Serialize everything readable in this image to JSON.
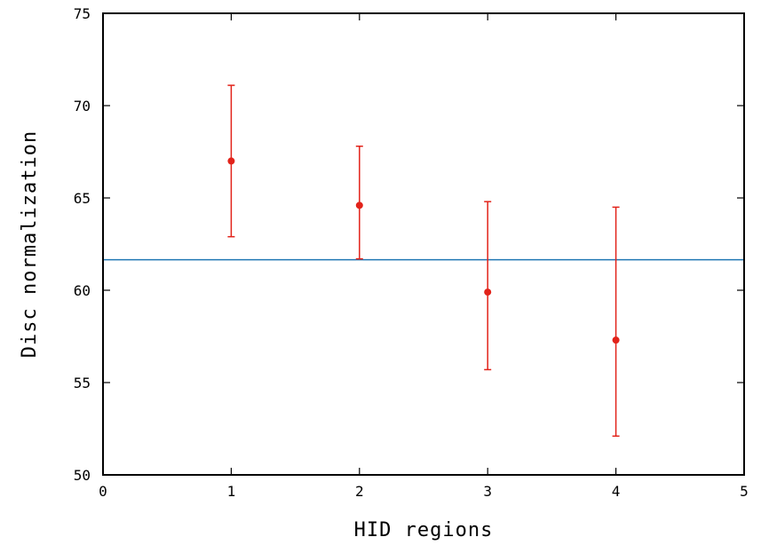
{
  "chart_data": {
    "type": "scatter",
    "title": "",
    "xlabel": "HID regions",
    "ylabel": "Disc normalization",
    "xlim": [
      0,
      5
    ],
    "ylim": [
      50,
      75
    ],
    "xticks": [
      0,
      1,
      2,
      3,
      4,
      5
    ],
    "yticks": [
      50,
      55,
      60,
      65,
      70,
      75
    ],
    "grid": false,
    "series": [
      {
        "color": "#e2231a",
        "x": [
          1,
          2,
          3,
          4
        ],
        "y": [
          67.0,
          64.6,
          59.9,
          57.3
        ],
        "err_low": [
          62.9,
          61.7,
          55.7,
          52.1
        ],
        "err_high": [
          71.1,
          67.8,
          64.8,
          64.5
        ]
      }
    ],
    "reference_line": {
      "y": 61.65,
      "color": "#1f77b4"
    }
  }
}
